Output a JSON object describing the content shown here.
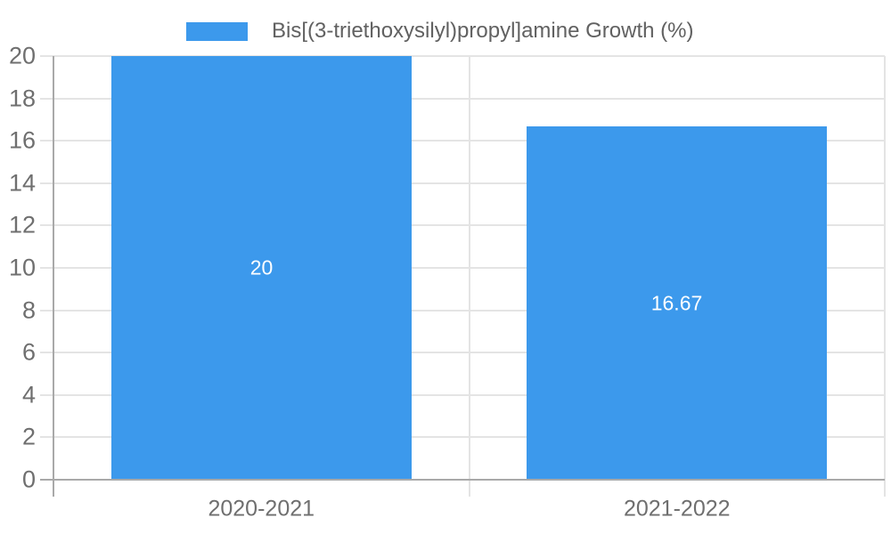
{
  "legend": {
    "label": "Bis[(3-triethoxysilyl)propyl]amine Growth (%)"
  },
  "chart_data": {
    "type": "bar",
    "title": "",
    "categories": [
      "2020-2021",
      "2021-2022"
    ],
    "series": [
      {
        "name": "Bis[(3-triethoxysilyl)propyl]amine Growth (%)",
        "values": [
          20,
          16.67
        ]
      }
    ],
    "bar_value_labels": [
      "20",
      "16.67"
    ],
    "xlabel": "",
    "ylabel": "",
    "ylim": [
      0,
      20
    ],
    "yticks": [
      0,
      2,
      4,
      6,
      8,
      10,
      12,
      14,
      16,
      18,
      20
    ],
    "grid": true,
    "legend_position": "top",
    "colors": {
      "bar": "#3C99EC",
      "grid": "#e4e4e4",
      "axis": "#a9a9a9",
      "tick_text": "#6f6f6f",
      "legend_text": "#616161",
      "bar_label": "#ffffff",
      "background": "#ffffff"
    }
  }
}
